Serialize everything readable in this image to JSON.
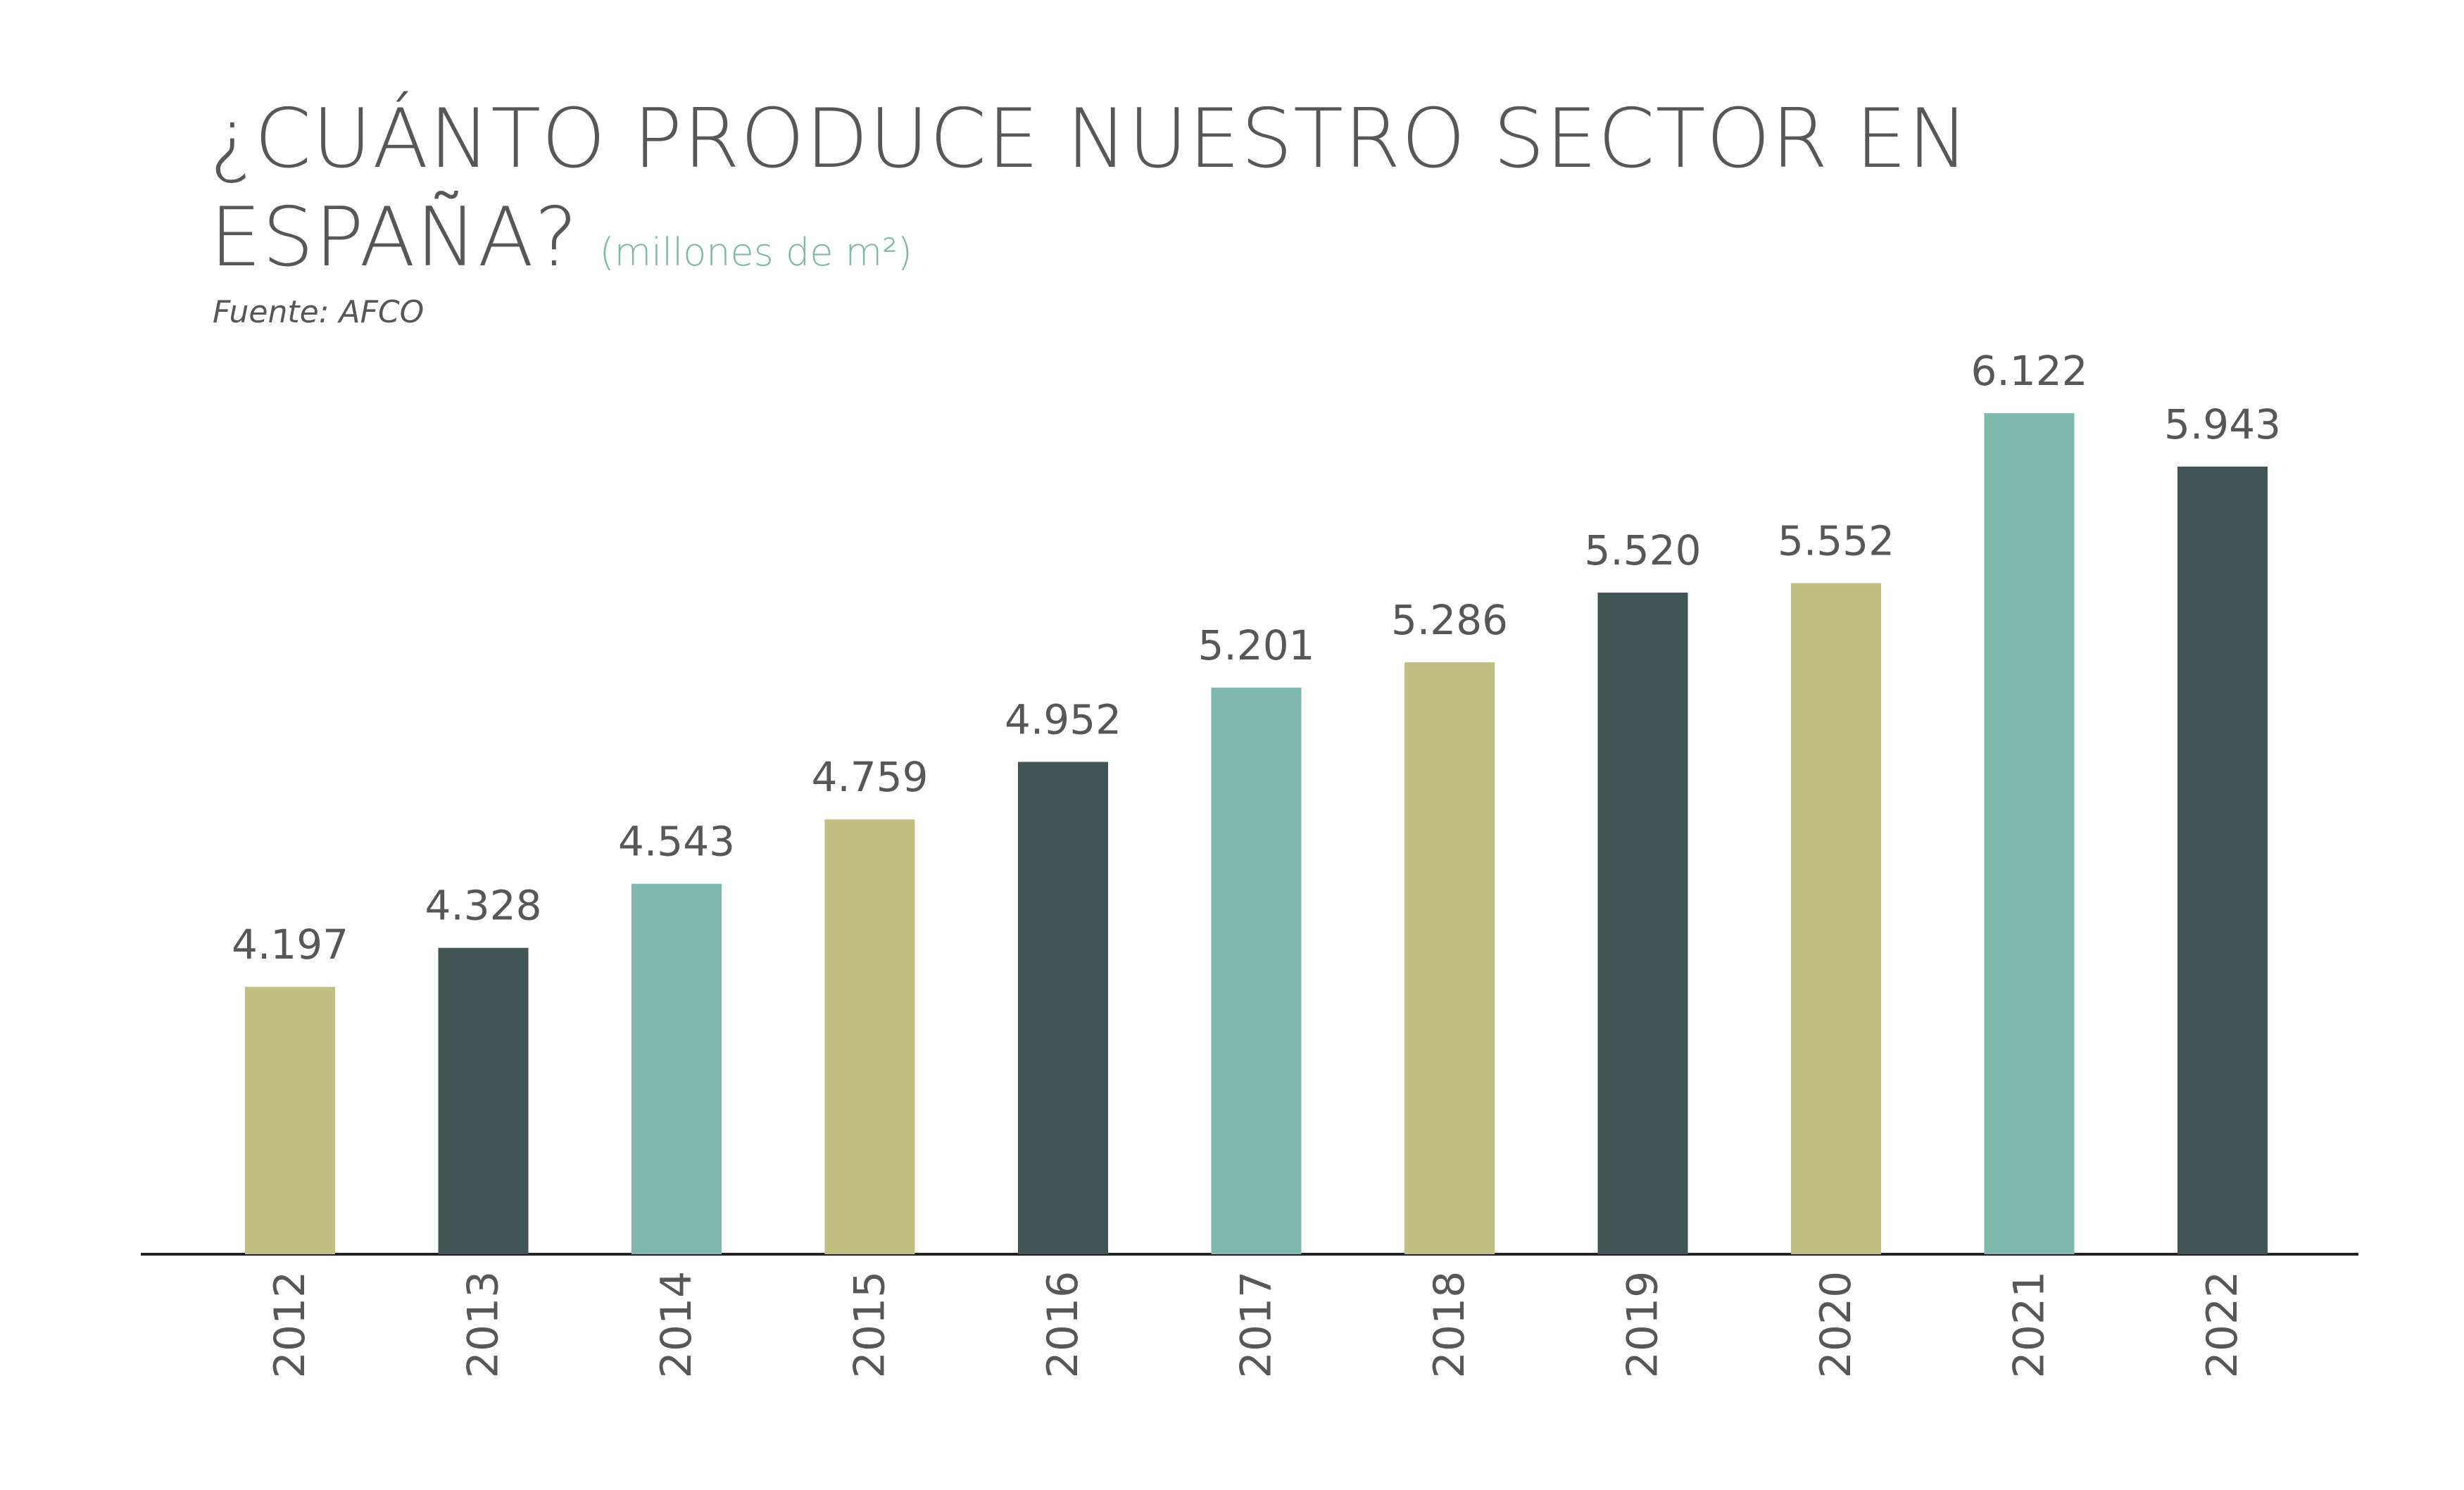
{
  "header": {
    "title": "¿CUÁNTO PRODUCE NUESTRO SECTOR EN ESPAÑA?",
    "unit": "(millones de m²)",
    "source": "Fuente: AFCO"
  },
  "colors": {
    "olive": "#c1c083",
    "dark": "#425453",
    "teal": "#7fb9ad",
    "text": "#575757",
    "axis": "#222222"
  },
  "chart_data": {
    "type": "bar",
    "categories": [
      "2012",
      "2013",
      "2014",
      "2015",
      "2016",
      "2017",
      "2018",
      "2019",
      "2020",
      "2021",
      "2022"
    ],
    "values": [
      4.197,
      4.328,
      4.543,
      4.759,
      4.952,
      5.201,
      5.286,
      5.52,
      5.552,
      6.122,
      5.943
    ],
    "value_labels": [
      "4.197",
      "4.328",
      "4.543",
      "4.759",
      "4.952",
      "5.201",
      "5.286",
      "5.520",
      "5.552",
      "6.122",
      "5.943"
    ],
    "bar_colors": [
      "olive",
      "dark",
      "teal",
      "olive",
      "dark",
      "teal",
      "olive",
      "dark",
      "olive",
      "teal",
      "dark"
    ],
    "title": "¿CUÁNTO PRODUCE NUESTRO SECTOR EN ESPAÑA?",
    "xlabel": "",
    "ylabel": "",
    "ylim": [
      3.3,
      6.8
    ],
    "grid": false,
    "legend": "none"
  }
}
